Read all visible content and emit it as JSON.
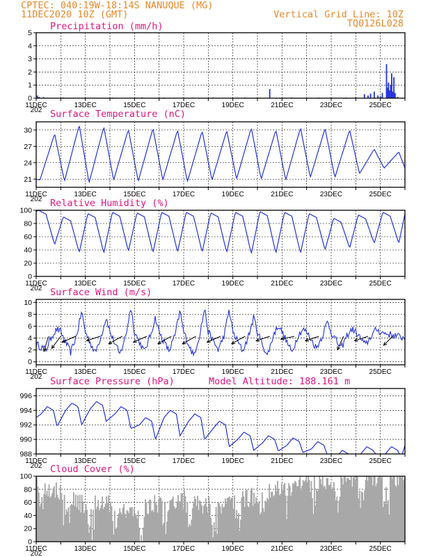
{
  "header": {
    "line1": "CPTEC:   040:19W-18:14S   NANUQUE (MG)",
    "line2": "11DEC2020 10Z (GMT)",
    "grid_note": "Vertical Grid Line: 10Z",
    "code": "TQ0126L028"
  },
  "colors": {
    "header": "#e8892a",
    "title": "#e0157f",
    "series": "#2233dd",
    "cloud": "#a8a8a8"
  },
  "x_labels": [
    "11DEC",
    "13DEC",
    "15DEC",
    "17DEC",
    "19DEC",
    "21DEC",
    "23DEC",
    "25DEC"
  ],
  "year_fragment": "202",
  "chart_data": [
    {
      "type": "bar",
      "title": "Precipitation (mm/h)",
      "ylim": [
        0,
        5
      ],
      "yticks": [
        "0",
        "1",
        "2",
        "3",
        "4",
        "5"
      ],
      "x_unit": "days since 11DEC2020 10Z (hourly)",
      "events": [
        {
          "t": 0.05,
          "v": 0.2
        },
        {
          "t": 0.12,
          "v": 0.1
        },
        {
          "t": 0.3,
          "v": 0.08
        },
        {
          "t": 1.1,
          "v": 0.05
        },
        {
          "t": 2.0,
          "v": 0.05
        },
        {
          "t": 3.1,
          "v": 0.05
        },
        {
          "t": 4.3,
          "v": 0.05
        },
        {
          "t": 5.2,
          "v": 0.05
        },
        {
          "t": 6.4,
          "v": 0.04
        },
        {
          "t": 7.2,
          "v": 0.05
        },
        {
          "t": 8.5,
          "v": 0.05
        },
        {
          "t": 9.5,
          "v": 0.7
        },
        {
          "t": 10.4,
          "v": 0.05
        },
        {
          "t": 11.5,
          "v": 0.05
        },
        {
          "t": 12.6,
          "v": 0.05
        },
        {
          "t": 13.0,
          "v": 0.1
        },
        {
          "t": 13.35,
          "v": 0.3
        },
        {
          "t": 13.5,
          "v": 0.2
        },
        {
          "t": 13.6,
          "v": 0.35
        },
        {
          "t": 13.75,
          "v": 0.5
        },
        {
          "t": 13.9,
          "v": 0.2
        },
        {
          "t": 14.0,
          "v": 0.15
        },
        {
          "t": 14.08,
          "v": 0.4
        },
        {
          "t": 14.25,
          "v": 2.6
        },
        {
          "t": 14.3,
          "v": 0.8
        },
        {
          "t": 14.33,
          "v": 1.2
        },
        {
          "t": 14.37,
          "v": 0.6
        },
        {
          "t": 14.42,
          "v": 1.0
        },
        {
          "t": 14.46,
          "v": 1.9
        },
        {
          "t": 14.5,
          "v": 0.5
        },
        {
          "t": 14.55,
          "v": 1.6
        },
        {
          "t": 14.6,
          "v": 0.4
        },
        {
          "t": 14.7,
          "v": 0.1
        }
      ]
    },
    {
      "type": "line",
      "title": "Surface Temperature (nC)",
      "ylim": [
        19.5,
        31.5
      ],
      "yticks": [
        "21",
        "24",
        "27",
        "30"
      ],
      "minima": [
        20.8,
        20.6,
        20.3,
        20.8,
        20.6,
        20.8,
        20.5,
        20.8,
        21.0,
        21.0,
        20.8,
        21.3,
        21.3,
        22.0,
        23.0
      ],
      "maxima": [
        29.3,
        30.9,
        30.6,
        30.1,
        30.3,
        30.0,
        29.8,
        29.9,
        30.4,
        30.0,
        30.4,
        30.3,
        30.0,
        26.5,
        26.0
      ],
      "end_value": 23.0
    },
    {
      "type": "line",
      "title": "Relative Humidity (%)",
      "ylim": [
        0,
        100
      ],
      "yticks": [
        "0",
        "20",
        "40",
        "60",
        "80",
        "100"
      ],
      "maxima": [
        100,
        90,
        95,
        97,
        96,
        97,
        97,
        96,
        97,
        98,
        97,
        95,
        88,
        93,
        97
      ],
      "minima": [
        48,
        36,
        35,
        38,
        36,
        37,
        37,
        36,
        34,
        35,
        35,
        40,
        43,
        50,
        50
      ]
    },
    {
      "type": "line",
      "title": "Surface Wind (m/s)",
      "ylim": [
        -0.5,
        10.5
      ],
      "yticks": [
        "0",
        "2",
        "4",
        "6",
        "8",
        "10"
      ],
      "maxima": [
        5.5,
        8.5,
        7.5,
        9.3,
        7.5,
        8.5,
        9.0,
        8.8,
        7.5,
        6.2,
        5.5,
        6.8,
        5.5,
        5.5
      ],
      "minima": [
        2.0,
        1.6,
        1.5,
        1.2,
        1.7,
        1.8,
        1.0,
        2.0,
        1.8,
        1.0,
        1.6,
        2.3,
        2.2,
        2.8
      ],
      "vectors": [
        [
          0.5,
          -0.3,
          -1.0
        ],
        [
          1.0,
          -0.6,
          -0.8
        ],
        [
          1.6,
          -0.9,
          -0.4
        ],
        [
          2.6,
          -0.9,
          -0.3
        ],
        [
          3.5,
          -0.9,
          -0.5
        ],
        [
          4.5,
          -0.9,
          -0.4
        ],
        [
          5.5,
          -0.9,
          -0.5
        ],
        [
          6.5,
          -0.9,
          -0.5
        ],
        [
          7.5,
          -0.9,
          -0.4
        ],
        [
          8.5,
          -0.9,
          -0.5
        ],
        [
          9.5,
          -0.9,
          -0.3
        ],
        [
          10.5,
          -0.9,
          -0.2
        ],
        [
          11.5,
          -0.9,
          -0.3
        ],
        [
          12.5,
          -0.4,
          -0.9
        ],
        [
          13.5,
          -0.9,
          -0.3
        ],
        [
          14.5,
          -0.6,
          -0.6
        ]
      ]
    },
    {
      "type": "line",
      "title": "Surface Pressure (hPa)",
      "subtitle": "Model Altitude: 188.161 m",
      "ylim": [
        988,
        997
      ],
      "yticks": [
        "988",
        "990",
        "992",
        "994",
        "996"
      ],
      "troughs": [
        991.8,
        992.0,
        992.5,
        991.5,
        990.0,
        990.5,
        990.0,
        989.0,
        988.5,
        988.4,
        988.2,
        987.8,
        987.5,
        987.8,
        987.5
      ],
      "peaks": [
        994.5,
        995.0,
        995.2,
        994.5,
        993.0,
        994.0,
        993.5,
        992.5,
        991.0,
        990.5,
        990.2,
        989.7,
        988.5,
        989.0,
        989.0
      ]
    },
    {
      "type": "bar",
      "title": "Cloud Cover (%)",
      "ylim": [
        0,
        100
      ],
      "yticks": [
        "0",
        "20",
        "40",
        "60",
        "80",
        "100"
      ]
    }
  ]
}
